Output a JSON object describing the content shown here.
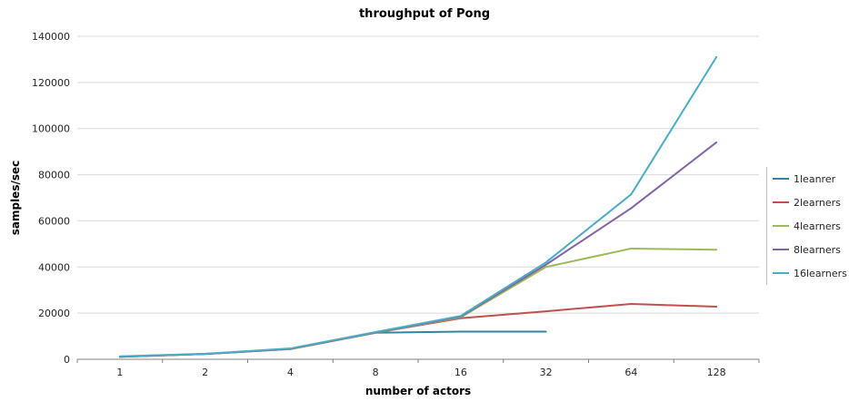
{
  "chart_data": {
    "type": "line",
    "title": "throughput of Pong",
    "xlabel": "number of actors",
    "ylabel": "samples/sec",
    "categories": [
      "1",
      "2",
      "4",
      "8",
      "16",
      "32",
      "64",
      "128"
    ],
    "ylim": [
      0,
      140000
    ],
    "ytick_step": 20000,
    "grid": true,
    "legend_position": "right",
    "colors": {
      "grid": "#d9d9d9",
      "axis": "#808080",
      "text": "#262626"
    },
    "series": [
      {
        "name": "1leanrer",
        "color": "#31859C",
        "values": [
          1200,
          2300,
          4500,
          11500,
          12000,
          12000
        ]
      },
      {
        "name": "2learners",
        "color": "#C0504D",
        "values": [
          1100,
          2300,
          4400,
          11500,
          17800,
          20800,
          24000,
          22800
        ]
      },
      {
        "name": "4learners",
        "color": "#9BBB59",
        "values": [
          1100,
          2300,
          4400,
          11500,
          18200,
          40000,
          48000,
          47500
        ]
      },
      {
        "name": "8learners",
        "color": "#8064A2",
        "values": [
          1100,
          2300,
          4500,
          11600,
          18500,
          41000,
          65500,
          94000
        ]
      },
      {
        "name": "16learners",
        "color": "#4BACC6",
        "values": [
          1300,
          2400,
          4700,
          11800,
          18800,
          42000,
          71500,
          131000
        ]
      }
    ]
  }
}
